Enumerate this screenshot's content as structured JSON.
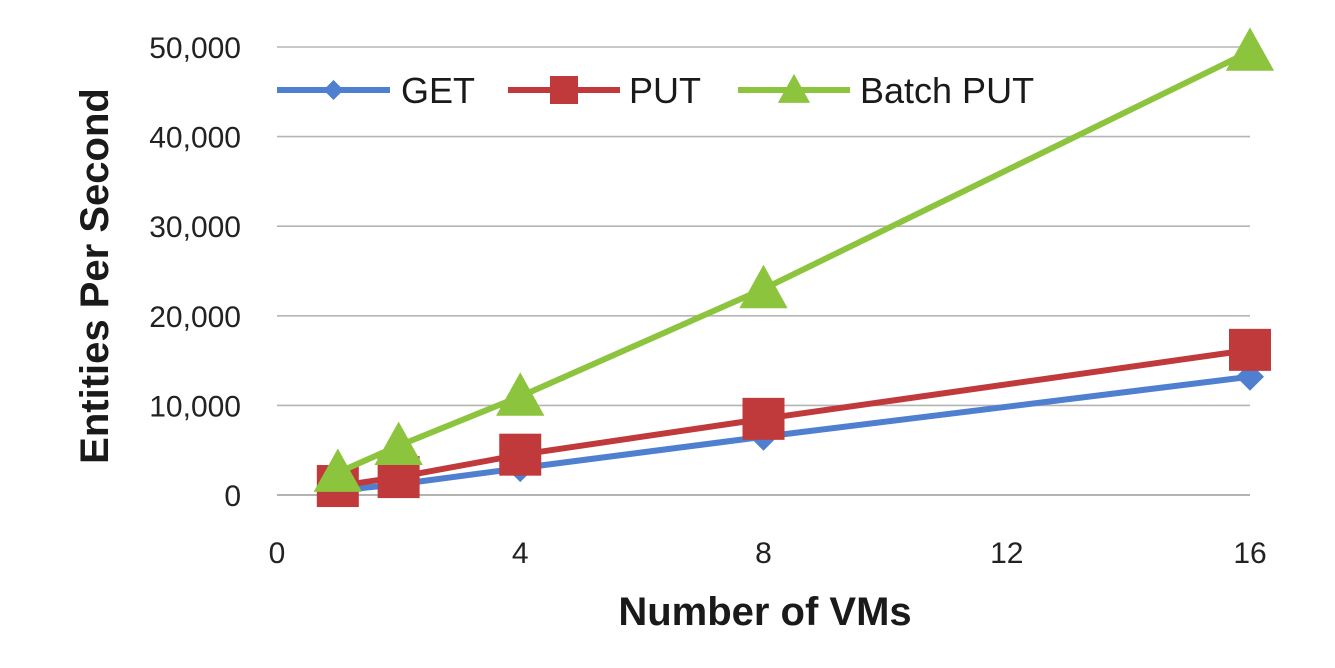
{
  "chart_data": {
    "type": "line",
    "title": "",
    "xlabel": "Number of VMs",
    "ylabel": "Entities Per Second",
    "xlim": [
      0,
      16
    ],
    "ylim": [
      0,
      50000
    ],
    "x_ticks": [
      0,
      4,
      8,
      12,
      16
    ],
    "x_tick_labels": [
      "0",
      "4",
      "8",
      "12",
      "16"
    ],
    "y_ticks": [
      0,
      10000,
      20000,
      30000,
      40000,
      50000
    ],
    "y_tick_labels": [
      "0",
      "10,000",
      "20,000",
      "30,000",
      "40,000",
      "50,000"
    ],
    "grid": "horizontal",
    "legend_position": "top",
    "series": [
      {
        "name": "GET",
        "marker": "diamond",
        "color": "#4f7fcf",
        "x": [
          1,
          2,
          4,
          8,
          16
        ],
        "y": [
          500,
          1200,
          3000,
          6500,
          13200
        ]
      },
      {
        "name": "PUT",
        "marker": "square",
        "color": "#c0393b",
        "x": [
          1,
          2,
          4,
          8,
          16
        ],
        "y": [
          1000,
          2000,
          4500,
          8500,
          16200
        ]
      },
      {
        "name": "Batch PUT",
        "marker": "triangle",
        "color": "#8cc43e",
        "x": [
          1,
          2,
          4,
          8,
          16
        ],
        "y": [
          2500,
          5500,
          11000,
          23000,
          49500
        ]
      }
    ]
  }
}
